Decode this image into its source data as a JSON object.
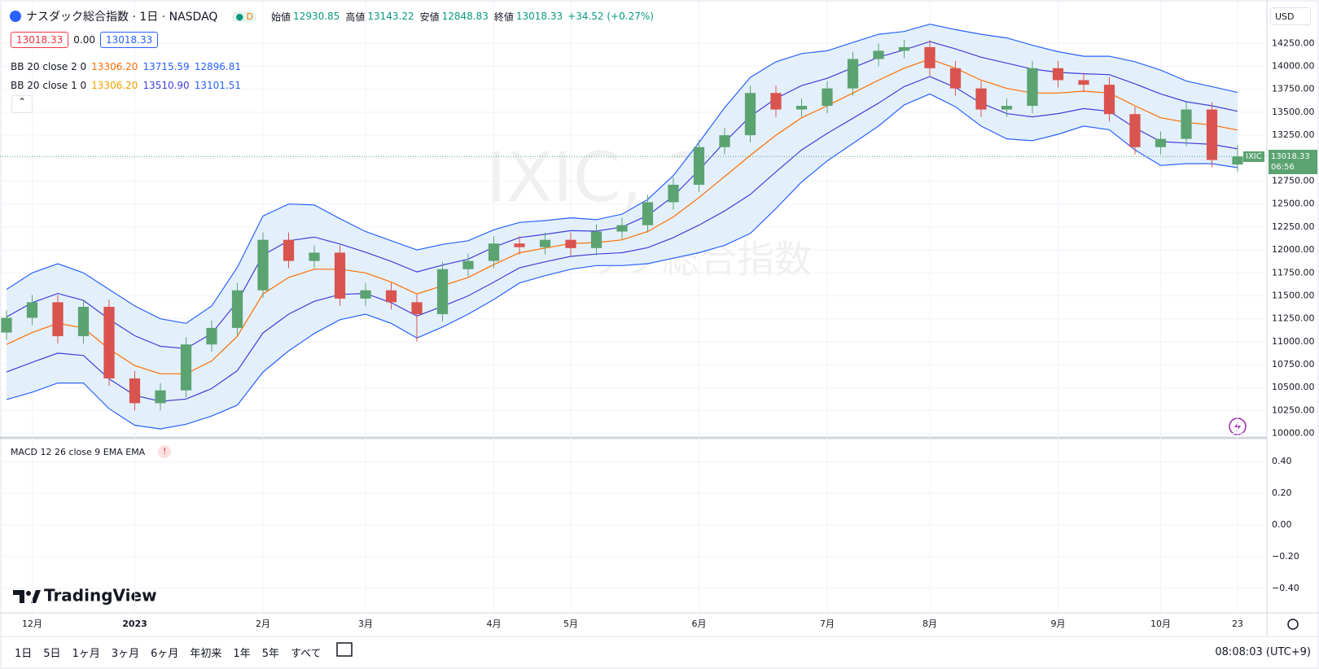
{
  "header": {
    "symbol": "ナスダック総合指数 · 1日 · NASDAQ",
    "interval_badge": "D",
    "ohlc": [
      {
        "label": "始値",
        "value": "12930.85"
      },
      {
        "label": "高値",
        "value": "13143.22"
      },
      {
        "label": "安値",
        "value": "12848.83"
      },
      {
        "label": "終値",
        "value": "13018.33"
      }
    ],
    "change": "+34.52 (+0.27%)",
    "price_boxes": [
      "13018.33",
      "0.00",
      "13018.33"
    ]
  },
  "indicators": [
    {
      "name": "BB 20 close 2 0",
      "values": [
        "13306.20",
        "13715.59",
        "12896.81"
      ],
      "colors": [
        "#ff6d00",
        "#2962ff",
        "#2962ff"
      ]
    },
    {
      "name": "BB 20 close 1 0",
      "values": [
        "13306.20",
        "13510.90",
        "13101.51"
      ],
      "colors": [
        "#f0a000",
        "#3f3fd8",
        "#2962ff"
      ]
    }
  ],
  "watermark": {
    "line1": "IXIC, 1日",
    "line2": "ナスダック総合指数"
  },
  "currency": "USD",
  "last_price": {
    "symbol": "IXIC",
    "price": "13018.33",
    "countdown": "06:56"
  },
  "chart_data": [
    {
      "type": "candlestick",
      "categories": [
        null,
        "12月",
        null,
        null,
        null,
        "2023",
        null,
        null,
        null,
        null,
        "2月",
        null,
        null,
        null,
        "3月",
        null,
        null,
        null,
        null,
        "4月",
        null,
        null,
        "5月",
        null,
        null,
        null,
        null,
        "6月",
        null,
        null,
        null,
        null,
        "7月",
        null,
        null,
        null,
        "8月",
        null,
        null,
        null,
        null,
        "9月",
        null,
        null,
        null,
        "10月",
        null,
        null,
        "23"
      ],
      "open": [
        11100,
        11260,
        11430,
        11060,
        11380,
        10600,
        10330,
        10470,
        10970,
        11150,
        11560,
        12110,
        11880,
        11970,
        11470,
        11560,
        11430,
        11300,
        11790,
        11880,
        12070,
        12030,
        12110,
        12020,
        12200,
        12270,
        12520,
        12710,
        13120,
        13250,
        13710,
        13530,
        13570,
        13760,
        14080,
        14170,
        14210,
        13980,
        13760,
        13530,
        13570,
        13980,
        13850,
        13800,
        13480,
        13120,
        13210,
        13530,
        12930.85
      ],
      "high": [
        11340,
        11510,
        11510,
        11460,
        11460,
        10680,
        10550,
        11050,
        11230,
        11640,
        12190,
        12190,
        12050,
        12050,
        11640,
        11640,
        11510,
        11870,
        11960,
        12150,
        12150,
        12190,
        12190,
        12280,
        12350,
        12600,
        12790,
        13200,
        13330,
        13790,
        13790,
        13650,
        13840,
        14160,
        14250,
        14290,
        14290,
        14060,
        13840,
        13650,
        14060,
        14060,
        13930,
        13880,
        13560,
        13290,
        13610,
        13610,
        13143.22
      ],
      "low": [
        11020,
        11180,
        10980,
        10980,
        10520,
        10250,
        10250,
        10390,
        10890,
        11070,
        11480,
        11800,
        11800,
        11390,
        11390,
        11350,
        11000,
        11220,
        11710,
        11800,
        11950,
        11950,
        11940,
        11940,
        12120,
        12190,
        12440,
        12630,
        13040,
        13170,
        13450,
        13450,
        13490,
        13680,
        14000,
        14090,
        13900,
        13680,
        13450,
        13450,
        13490,
        13770,
        13720,
        13400,
        13040,
        13040,
        13130,
        12900,
        12848.83
      ],
      "close": [
        11260,
        11430,
        11060,
        11380,
        10600,
        10330,
        10470,
        10970,
        11150,
        11560,
        12110,
        11880,
        11970,
        11470,
        11560,
        11430,
        11300,
        11790,
        11880,
        12070,
        12030,
        12110,
        12020,
        12200,
        12270,
        12520,
        12710,
        13120,
        13250,
        13710,
        13530,
        13570,
        13760,
        14080,
        14170,
        14210,
        13980,
        13760,
        13530,
        13570,
        13980,
        13850,
        13800,
        13480,
        13120,
        13210,
        13530,
        12980,
        13018.33
      ],
      "up_color": "#5ba371",
      "down_color": "#d9534f",
      "series": [
        {
          "color": "#ff6d00",
          "values": [
            10970,
            11100,
            11200,
            11150,
            10920,
            10740,
            10650,
            10650,
            10790,
            11060,
            11520,
            11700,
            11790,
            11790,
            11750,
            11650,
            11520,
            11610,
            11700,
            11840,
            11970,
            12020,
            12070,
            12080,
            12110,
            12200,
            12360,
            12570,
            12800,
            13030,
            13250,
            13440,
            13570,
            13710,
            13850,
            13980,
            14080,
            13980,
            13850,
            13760,
            13710,
            13710,
            13730,
            13710,
            13570,
            13440,
            13390,
            13360,
            13306.2
          ]
        },
        {
          "color": "#2962ff",
          "values": [
            11570,
            11750,
            11850,
            11750,
            11570,
            11390,
            11250,
            11200,
            11390,
            11810,
            12370,
            12500,
            12490,
            12340,
            12200,
            12100,
            12000,
            12060,
            12100,
            12220,
            12300,
            12320,
            12350,
            12330,
            12390,
            12550,
            12810,
            13170,
            13550,
            13880,
            14050,
            14140,
            14170,
            14260,
            14350,
            14380,
            14460,
            14400,
            14350,
            14310,
            14230,
            14160,
            14110,
            14110,
            14050,
            13960,
            13840,
            13780,
            13715.59
          ]
        },
        {
          "color": "#2962ff",
          "values": [
            10370,
            10450,
            10550,
            10550,
            10270,
            10090,
            10050,
            10100,
            10190,
            10310,
            10670,
            10900,
            11090,
            11240,
            11300,
            11200,
            11040,
            11160,
            11300,
            11460,
            11640,
            11720,
            11790,
            11830,
            11830,
            11850,
            11910,
            11970,
            12050,
            12180,
            12450,
            12740,
            12970,
            13160,
            13350,
            13580,
            13700,
            13560,
            13350,
            13210,
            13190,
            13260,
            13350,
            13310,
            13090,
            12920,
            12940,
            12940,
            12896.81
          ]
        },
        {
          "color": "#3f3fd8",
          "values": [
            11270,
            11425,
            11525,
            11450,
            11245,
            11065,
            10950,
            10925,
            11090,
            11435,
            11945,
            12100,
            12140,
            12065,
            11975,
            11875,
            11760,
            11835,
            11900,
            12030,
            12135,
            12170,
            12210,
            12205,
            12250,
            12375,
            12585,
            12870,
            13175,
            13455,
            13650,
            13790,
            13870,
            13985,
            14100,
            14180,
            14270,
            14190,
            14100,
            14035,
            13970,
            13935,
            13920,
            13910,
            13810,
            13700,
            13615,
            13570,
            13510.9
          ]
        },
        {
          "color": "#3f3fd8",
          "values": [
            10670,
            10775,
            10875,
            10850,
            10595,
            10415,
            10350,
            10375,
            10490,
            10685,
            11095,
            11300,
            11440,
            11515,
            11525,
            11425,
            11280,
            11385,
            11500,
            11650,
            11805,
            11870,
            11930,
            11955,
            11970,
            12025,
            12135,
            12270,
            12425,
            12605,
            12850,
            13090,
            13270,
            13435,
            13600,
            13780,
            13890,
            13770,
            13600,
            13485,
            13450,
            13485,
            13540,
            13510,
            13330,
            13180,
            13165,
            13150,
            13101.51
          ]
        }
      ],
      "band_fill": "#e3f0fb",
      "ylim": [
        9970,
        14670
      ],
      "yticks": [
        {
          "value": 10000,
          "label": "10000.00"
        },
        {
          "value": 10250,
          "label": "10250.00"
        },
        {
          "value": 10500,
          "label": "10500.00"
        },
        {
          "value": 10750,
          "label": "10750.00"
        },
        {
          "value": 11000,
          "label": "11000.00"
        },
        {
          "value": 11250,
          "label": "11250.00"
        },
        {
          "value": 11500,
          "label": "11500.00"
        },
        {
          "value": 11750,
          "label": "11750.00"
        },
        {
          "value": 12000,
          "label": "12000.00"
        },
        {
          "value": 12250,
          "label": "12250.00"
        },
        {
          "value": 12500,
          "label": "12500.00"
        },
        {
          "value": 12750,
          "label": "12750.00"
        },
        {
          "value": 13000,
          "label": "13000.00"
        },
        {
          "value": 13250,
          "label": "13250.00"
        },
        {
          "value": 13500,
          "label": "13500.00"
        },
        {
          "value": 13750,
          "label": "13750.00"
        },
        {
          "value": 14000,
          "label": "14000.00"
        },
        {
          "value": 14250,
          "label": "14250.00"
        }
      ],
      "grid": true
    },
    {
      "type": "macd",
      "title": "MACD 12 26 close 9 EMA EMA",
      "ylim": [
        -0.55,
        0.54
      ],
      "yticks": [
        {
          "value": 0.4,
          "label": "0.40"
        },
        {
          "value": 0.2,
          "label": "0.20"
        },
        {
          "value": 0,
          "label": "0.00"
        },
        {
          "value": -0.2,
          "label": "−0.20"
        },
        {
          "value": -0.4,
          "label": "−0.40"
        }
      ],
      "grid": true
    }
  ],
  "brand": "TradingView",
  "toolbar": {
    "ranges": [
      "1日",
      "5日",
      "1ヶ月",
      "3ヶ月",
      "6ヶ月",
      "年初来",
      "1年",
      "5年",
      "すべて"
    ],
    "clock": "08:08:03 (UTC+9)"
  }
}
